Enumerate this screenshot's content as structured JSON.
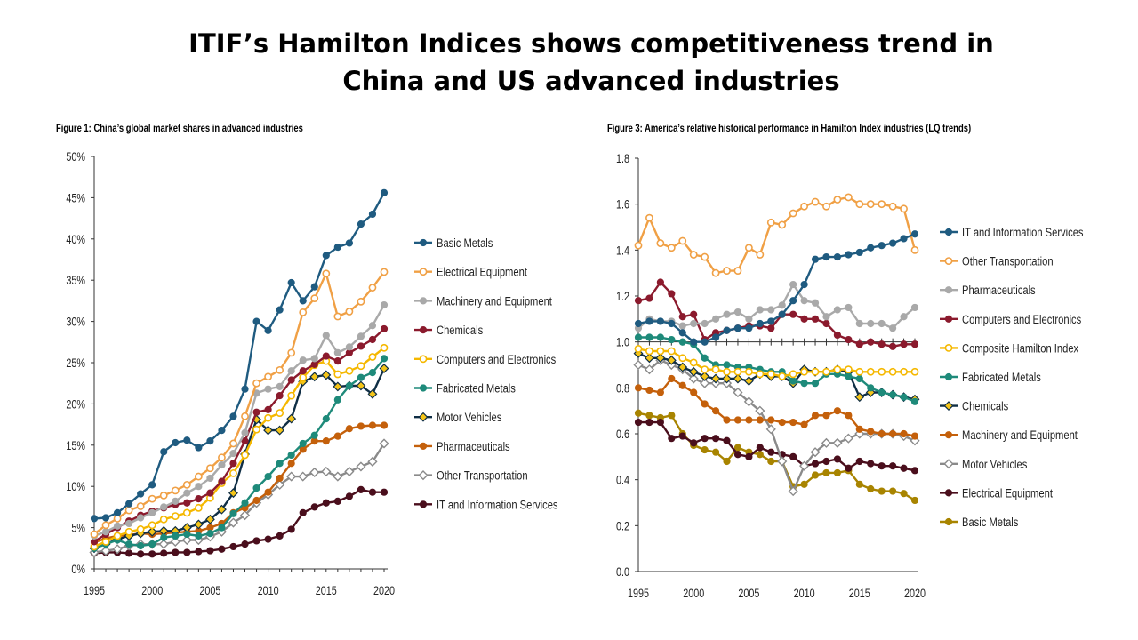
{
  "page": {
    "title_line1": "ITIF’s Hamilton Indices shows competitiveness trend in",
    "title_line2": "China and US advanced industries"
  },
  "chart_data": [
    {
      "type": "line",
      "title": "Figure 1: China’s global market shares in advanced industries",
      "x": [
        1995,
        1996,
        1997,
        1998,
        1999,
        2000,
        2001,
        2002,
        2003,
        2004,
        2005,
        2006,
        2007,
        2008,
        2009,
        2010,
        2011,
        2012,
        2013,
        2014,
        2015,
        2016,
        2017,
        2018,
        2019,
        2020
      ],
      "ylim": [
        0,
        0.5
      ],
      "yticks": [
        "0%",
        "5%",
        "10%",
        "15%",
        "20%",
        "25%",
        "30%",
        "35%",
        "40%",
        "45%",
        "50%"
      ],
      "xticks": [
        "1995",
        "2000",
        "2005",
        "2010",
        "2015",
        "2020"
      ],
      "grid": false,
      "legend_position": "right",
      "series": [
        {
          "name": "Basic Metals",
          "color": "#1f5b80",
          "marker": "dot",
          "values": [
            0.061,
            0.062,
            0.068,
            0.079,
            0.091,
            0.102,
            0.142,
            0.153,
            0.156,
            0.147,
            0.155,
            0.168,
            0.185,
            0.218,
            0.3,
            0.289,
            0.314,
            0.347,
            0.325,
            0.342,
            0.38,
            0.39,
            0.395,
            0.418,
            0.43,
            0.456
          ]
        },
        {
          "name": "Electrical Equipment",
          "color": "#f0a045",
          "marker": "open",
          "values": [
            0.042,
            0.053,
            0.061,
            0.071,
            0.076,
            0.085,
            0.089,
            0.095,
            0.102,
            0.112,
            0.122,
            0.135,
            0.152,
            0.185,
            0.225,
            0.233,
            0.241,
            0.262,
            0.311,
            0.328,
            0.358,
            0.306,
            0.312,
            0.324,
            0.341,
            0.36
          ]
        },
        {
          "name": "Machinery and Equipment",
          "color": "#a9a9a9",
          "marker": "dot",
          "values": [
            0.04,
            0.045,
            0.052,
            0.055,
            0.062,
            0.068,
            0.075,
            0.082,
            0.092,
            0.1,
            0.11,
            0.126,
            0.14,
            0.165,
            0.213,
            0.218,
            0.221,
            0.24,
            0.253,
            0.255,
            0.283,
            0.262,
            0.269,
            0.282,
            0.295,
            0.32
          ]
        },
        {
          "name": "Chemicals",
          "color": "#8b1a2d",
          "marker": "dot",
          "values": [
            0.033,
            0.042,
            0.05,
            0.058,
            0.065,
            0.07,
            0.074,
            0.078,
            0.08,
            0.085,
            0.092,
            0.106,
            0.128,
            0.155,
            0.19,
            0.193,
            0.21,
            0.229,
            0.24,
            0.248,
            0.258,
            0.252,
            0.262,
            0.27,
            0.278,
            0.291
          ]
        },
        {
          "name": "Computers and Electronics",
          "color": "#f5b800",
          "marker": "open",
          "values": [
            0.027,
            0.033,
            0.04,
            0.045,
            0.048,
            0.053,
            0.06,
            0.064,
            0.068,
            0.074,
            0.086,
            0.104,
            0.116,
            0.138,
            0.169,
            0.183,
            0.189,
            0.21,
            0.232,
            0.247,
            0.252,
            0.236,
            0.24,
            0.246,
            0.257,
            0.268
          ]
        },
        {
          "name": "Fabricated Metals",
          "color": "#1e8a7a",
          "marker": "dot",
          "values": [
            0.025,
            0.03,
            0.035,
            0.03,
            0.028,
            0.03,
            0.038,
            0.04,
            0.042,
            0.04,
            0.043,
            0.05,
            0.067,
            0.08,
            0.098,
            0.112,
            0.128,
            0.138,
            0.152,
            0.162,
            0.182,
            0.205,
            0.222,
            0.232,
            0.238,
            0.255
          ]
        },
        {
          "name": "Motor Vehicles",
          "color": "#0f2e45",
          "marker": "diamond",
          "values": [
            0.025,
            0.03,
            0.036,
            0.04,
            0.043,
            0.045,
            0.046,
            0.046,
            0.05,
            0.054,
            0.06,
            0.072,
            0.092,
            0.139,
            0.181,
            0.168,
            0.168,
            0.182,
            0.227,
            0.233,
            0.235,
            0.221,
            0.222,
            0.222,
            0.212,
            0.243
          ]
        },
        {
          "name": "Pharmaceuticals",
          "color": "#c4600b",
          "marker": "dot",
          "values": [
            0.032,
            0.037,
            0.04,
            0.041,
            0.043,
            0.042,
            0.043,
            0.044,
            0.045,
            0.046,
            0.05,
            0.055,
            0.068,
            0.074,
            0.083,
            0.093,
            0.11,
            0.128,
            0.145,
            0.155,
            0.155,
            0.161,
            0.17,
            0.173,
            0.174,
            0.174
          ]
        },
        {
          "name": "Other Transportation",
          "color": "#8a8a8a",
          "marker": "open-diamond",
          "values": [
            0.02,
            0.022,
            0.024,
            0.028,
            0.03,
            0.03,
            0.03,
            0.033,
            0.035,
            0.035,
            0.039,
            0.045,
            0.056,
            0.065,
            0.08,
            0.09,
            0.102,
            0.112,
            0.112,
            0.117,
            0.118,
            0.112,
            0.118,
            0.124,
            0.13,
            0.152
          ]
        },
        {
          "name": "IT and Information Services",
          "color": "#4a0e1c",
          "marker": "dot",
          "values": [
            0.019,
            0.02,
            0.02,
            0.019,
            0.018,
            0.018,
            0.019,
            0.02,
            0.02,
            0.021,
            0.022,
            0.024,
            0.027,
            0.03,
            0.034,
            0.036,
            0.04,
            0.048,
            0.068,
            0.075,
            0.08,
            0.082,
            0.088,
            0.096,
            0.093,
            0.093
          ]
        }
      ]
    },
    {
      "type": "line",
      "title": "Figure 3: America’s relative historical performance in Hamilton Index industries (LQ trends)",
      "x": [
        1995,
        1996,
        1997,
        1998,
        1999,
        2000,
        2001,
        2002,
        2003,
        2004,
        2005,
        2006,
        2007,
        2008,
        2009,
        2010,
        2011,
        2012,
        2013,
        2014,
        2015,
        2016,
        2017,
        2018,
        2019,
        2020
      ],
      "ylim": [
        0,
        1.8
      ],
      "yticks": [
        "0.0",
        "0.2",
        "0.4",
        "0.6",
        "0.8",
        "1.0",
        "1.2",
        "1.4",
        "1.6",
        "1.8"
      ],
      "xticks": [
        "1995",
        "2000",
        "2005",
        "2010",
        "2015",
        "2020"
      ],
      "grid": false,
      "legend_position": "right",
      "series": [
        {
          "name": "IT and Information Services",
          "color": "#1f5b80",
          "marker": "dot",
          "values": [
            1.08,
            1.09,
            1.09,
            1.08,
            1.04,
            1.0,
            1.0,
            1.02,
            1.05,
            1.06,
            1.06,
            1.08,
            1.09,
            1.12,
            1.18,
            1.25,
            1.36,
            1.37,
            1.37,
            1.38,
            1.39,
            1.41,
            1.42,
            1.43,
            1.45,
            1.47
          ]
        },
        {
          "name": "Other Transportation",
          "color": "#f0a045",
          "marker": "open",
          "values": [
            1.42,
            1.54,
            1.43,
            1.41,
            1.44,
            1.38,
            1.37,
            1.3,
            1.31,
            1.31,
            1.41,
            1.38,
            1.52,
            1.51,
            1.56,
            1.59,
            1.61,
            1.59,
            1.62,
            1.63,
            1.6,
            1.6,
            1.6,
            1.59,
            1.58,
            1.4
          ]
        },
        {
          "name": "Pharmaceuticals",
          "color": "#a9a9a9",
          "marker": "dot",
          "values": [
            1.06,
            1.1,
            1.09,
            1.09,
            1.07,
            1.08,
            1.08,
            1.1,
            1.12,
            1.13,
            1.1,
            1.14,
            1.14,
            1.16,
            1.25,
            1.18,
            1.17,
            1.11,
            1.14,
            1.15,
            1.08,
            1.08,
            1.08,
            1.06,
            1.11,
            1.15
          ]
        },
        {
          "name": "Computers and Electronics",
          "color": "#8b1a2d",
          "marker": "dot",
          "values": [
            1.18,
            1.19,
            1.26,
            1.21,
            1.11,
            1.12,
            1.01,
            1.04,
            1.05,
            1.06,
            1.07,
            1.07,
            1.06,
            1.12,
            1.12,
            1.1,
            1.1,
            1.08,
            1.03,
            1.01,
            0.99,
            1.0,
            0.99,
            0.98,
            0.99,
            0.99
          ]
        },
        {
          "name": "Composite Hamilton Index",
          "color": "#f5b800",
          "marker": "open",
          "values": [
            0.97,
            0.96,
            0.96,
            0.96,
            0.93,
            0.91,
            0.88,
            0.88,
            0.87,
            0.87,
            0.87,
            0.86,
            0.86,
            0.85,
            0.86,
            0.87,
            0.87,
            0.87,
            0.88,
            0.88,
            0.87,
            0.87,
            0.87,
            0.87,
            0.87,
            0.87
          ]
        },
        {
          "name": "Fabricated Metals",
          "color": "#1e8a7a",
          "marker": "dot",
          "values": [
            1.02,
            1.02,
            1.02,
            1.01,
            1.0,
            0.99,
            0.93,
            0.9,
            0.9,
            0.89,
            0.89,
            0.88,
            0.87,
            0.87,
            0.83,
            0.82,
            0.82,
            0.86,
            0.86,
            0.85,
            0.84,
            0.8,
            0.78,
            0.77,
            0.76,
            0.74
          ]
        },
        {
          "name": "Chemicals",
          "color": "#0f2e45",
          "marker": "diamond",
          "values": [
            0.95,
            0.93,
            0.93,
            0.92,
            0.89,
            0.87,
            0.85,
            0.84,
            0.84,
            0.84,
            0.83,
            0.86,
            0.85,
            0.85,
            0.82,
            0.88,
            0.87,
            0.87,
            0.88,
            0.87,
            0.76,
            0.78,
            0.78,
            0.77,
            0.76,
            0.75
          ]
        },
        {
          "name": "Machinery and Equipment",
          "color": "#c4600b",
          "marker": "dot",
          "values": [
            0.8,
            0.79,
            0.78,
            0.84,
            0.81,
            0.78,
            0.73,
            0.7,
            0.66,
            0.66,
            0.66,
            0.66,
            0.66,
            0.65,
            0.65,
            0.64,
            0.68,
            0.68,
            0.7,
            0.68,
            0.62,
            0.61,
            0.6,
            0.6,
            0.6,
            0.59
          ]
        },
        {
          "name": "Motor Vehicles",
          "color": "#8a8a8a",
          "marker": "open-diamond",
          "values": [
            0.9,
            0.88,
            0.92,
            0.9,
            0.88,
            0.84,
            0.82,
            0.82,
            0.82,
            0.78,
            0.74,
            0.7,
            0.62,
            0.48,
            0.35,
            0.46,
            0.52,
            0.56,
            0.56,
            0.58,
            0.6,
            0.6,
            0.6,
            0.6,
            0.59,
            0.57
          ]
        },
        {
          "name": "Electrical Equipment",
          "color": "#4a0e1c",
          "marker": "dot",
          "values": [
            0.65,
            0.65,
            0.65,
            0.58,
            0.59,
            0.56,
            0.58,
            0.58,
            0.57,
            0.51,
            0.5,
            0.54,
            0.52,
            0.51,
            0.5,
            0.46,
            0.47,
            0.48,
            0.49,
            0.45,
            0.48,
            0.47,
            0.46,
            0.46,
            0.45,
            0.44
          ]
        },
        {
          "name": "Basic Metals",
          "color": "#a88400",
          "marker": "dot",
          "values": [
            0.69,
            0.68,
            0.67,
            0.68,
            0.6,
            0.55,
            0.53,
            0.52,
            0.48,
            0.54,
            0.52,
            0.51,
            0.48,
            0.48,
            0.37,
            0.38,
            0.42,
            0.43,
            0.43,
            0.44,
            0.38,
            0.36,
            0.35,
            0.35,
            0.34,
            0.31
          ]
        }
      ]
    }
  ]
}
